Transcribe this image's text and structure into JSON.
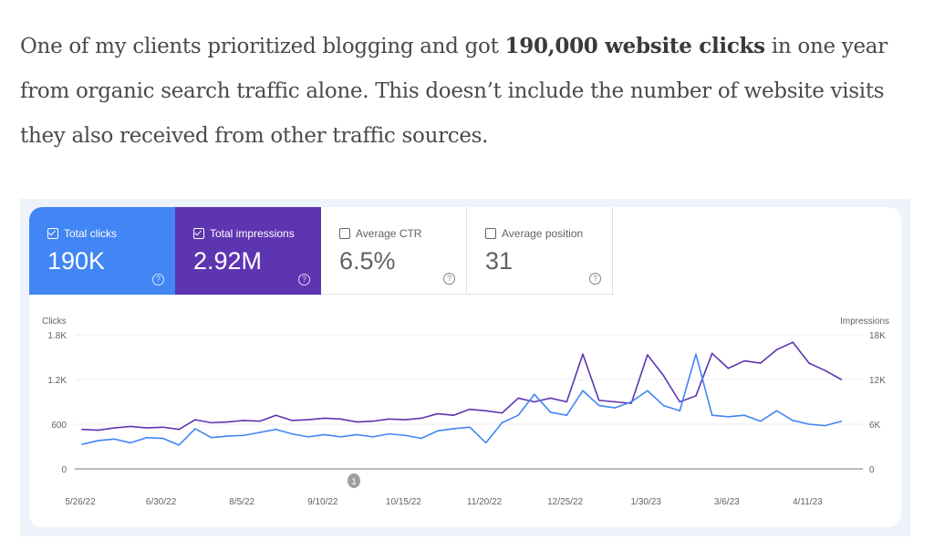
{
  "article": {
    "p1": "One of my clients prioritized blogging and got ",
    "bold": "190,000 website clicks",
    "p2": " in one year from organic search traffic alone. This doesn’t include the number of website visits they also received from other traffic sources."
  },
  "tiles": [
    {
      "label": "Total clicks",
      "value": "190K",
      "checked": true,
      "color": "#4285f4"
    },
    {
      "label": "Total impressions",
      "value": "2.92M",
      "checked": true,
      "color": "#5e35b1"
    },
    {
      "label": "Average CTR",
      "value": "6.5%",
      "checked": false
    },
    {
      "label": "Average position",
      "value": "31",
      "checked": false
    }
  ],
  "help_icon": "question-circle-icon",
  "annotation_marker": "1",
  "chart_data": {
    "type": "line",
    "left_axis_label": "Clicks",
    "right_axis_label": "Impressions",
    "left_ticks": [
      "0",
      "600",
      "1.2K",
      "1.8K"
    ],
    "right_ticks": [
      "0",
      "6K",
      "12K",
      "18K"
    ],
    "left_ylim": [
      0,
      1800
    ],
    "right_ylim": [
      0,
      18000
    ],
    "x_tick_labels": [
      "5/26/22",
      "6/30/22",
      "8/5/22",
      "9/10/22",
      "10/15/22",
      "11/20/22",
      "12/25/22",
      "1/30/23",
      "3/6/23",
      "4/11/23"
    ],
    "grid": true,
    "x": [
      "2022-05-26",
      "2022-06-02",
      "2022-06-09",
      "2022-06-16",
      "2022-06-23",
      "2022-06-30",
      "2022-07-07",
      "2022-07-14",
      "2022-07-21",
      "2022-07-28",
      "2022-08-04",
      "2022-08-11",
      "2022-08-18",
      "2022-08-25",
      "2022-09-01",
      "2022-09-08",
      "2022-09-15",
      "2022-09-22",
      "2022-09-29",
      "2022-10-06",
      "2022-10-13",
      "2022-10-20",
      "2022-10-27",
      "2022-11-03",
      "2022-11-10",
      "2022-11-17",
      "2022-11-24",
      "2022-12-01",
      "2022-12-08",
      "2022-12-15",
      "2022-12-22",
      "2022-12-29",
      "2023-01-05",
      "2023-01-12",
      "2023-01-19",
      "2023-01-26",
      "2023-02-02",
      "2023-02-09",
      "2023-02-16",
      "2023-02-23",
      "2023-03-02",
      "2023-03-09",
      "2023-03-16",
      "2023-03-23",
      "2023-03-30",
      "2023-04-06",
      "2023-04-13",
      "2023-04-20"
    ],
    "series": [
      {
        "name": "Total clicks",
        "axis": "left",
        "color": "#4285f4",
        "values": [
          330,
          380,
          400,
          350,
          420,
          410,
          320,
          540,
          420,
          440,
          450,
          490,
          530,
          470,
          430,
          460,
          430,
          460,
          430,
          470,
          450,
          410,
          510,
          540,
          560,
          350,
          620,
          720,
          1000,
          760,
          720,
          1050,
          850,
          820,
          900,
          1050,
          850,
          780,
          1540,
          720,
          700,
          720,
          640,
          780,
          650,
          600,
          580,
          640
        ]
      },
      {
        "name": "Total impressions",
        "axis": "right",
        "color": "#5e35b1",
        "values": [
          5300,
          5200,
          5500,
          5700,
          5500,
          5600,
          5300,
          6600,
          6200,
          6300,
          6500,
          6400,
          7200,
          6500,
          6600,
          6800,
          6700,
          6300,
          6400,
          6700,
          6600,
          6800,
          7400,
          7200,
          8000,
          7800,
          7500,
          9500,
          9000,
          9500,
          9000,
          15400,
          9200,
          9000,
          8800,
          15300,
          12500,
          9000,
          9800,
          15500,
          13500,
          14500,
          14200,
          16000,
          17000,
          14200,
          13200,
          12000
        ]
      }
    ]
  }
}
